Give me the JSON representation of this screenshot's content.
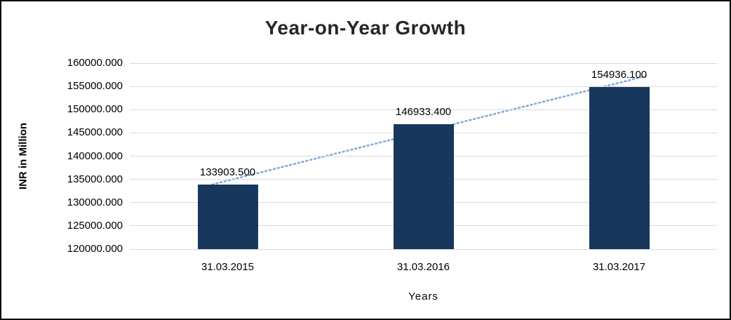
{
  "chart_data": {
    "type": "bar",
    "title": "Year-on-Year Growth",
    "xlabel": "Years",
    "ylabel": "INR in Million",
    "categories": [
      "31.03.2015",
      "31.03.2016",
      "31.03.2017"
    ],
    "values": [
      133903.5,
      146933.4,
      154936.1
    ],
    "data_labels": [
      "133903.500",
      "146933.400",
      "154936.100"
    ],
    "ylim": [
      120000,
      160000
    ],
    "ytick_step": 5000,
    "ytick_labels": [
      "160000.000",
      "155000.000",
      "150000.000",
      "145000.000",
      "140000.000",
      "135000.000",
      "130000.000",
      "125000.000",
      "120000.000"
    ],
    "grid": true,
    "legend": false,
    "trendline": "linear-dotted",
    "colors": {
      "bar": "#17375d",
      "trendline": "#7da7d9",
      "grid": "#d9d9d9",
      "border": "#0d0d0d"
    }
  }
}
